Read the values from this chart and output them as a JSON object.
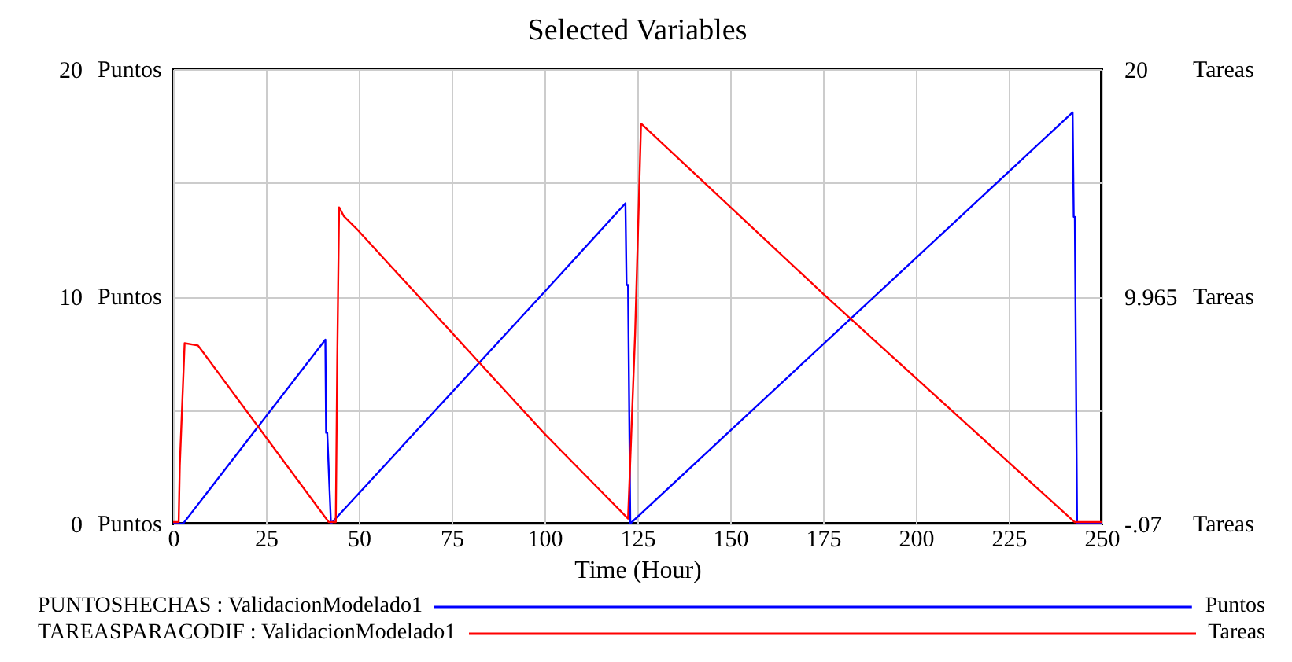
{
  "chart_data": {
    "type": "line",
    "title": "Selected Variables",
    "xlabel": "Time (Hour)",
    "ylabel": "Puntos",
    "y2label": "Tareas",
    "xlim": [
      0,
      250
    ],
    "xticks": [
      0,
      25,
      50,
      75,
      100,
      125,
      150,
      175,
      200,
      225,
      250
    ],
    "ylim": [
      0,
      20
    ],
    "yticks": [
      0,
      {
        "value": 5,
        "label": null
      },
      10,
      {
        "value": 15,
        "label": null
      },
      20
    ],
    "y2lim": [
      -0.07,
      20
    ],
    "y2ticks": [
      {
        "value": -0.07,
        "label": "-.07"
      },
      9.965,
      20
    ],
    "grid": true,
    "legend": "bottom",
    "marker": "none",
    "line_style": "solid",
    "series": [
      {
        "name": "PUNTOSHECHAS : ValidacionModelado1",
        "color": "#0000ff",
        "x": [
          0,
          2.7,
          41,
          41.2,
          41.5,
          42.5,
          100,
          121.8,
          122.1,
          122.5,
          123.1,
          242.2,
          242.5,
          242.8,
          243.4,
          250
        ],
        "values": [
          0,
          0,
          8.1,
          4.0,
          4.0,
          0,
          10.2,
          14.1,
          10.5,
          10.5,
          0,
          18.1,
          13.5,
          13.5,
          0,
          0
        ]
      },
      {
        "name": "TAREASPARACODIF : ValidacionModelado1",
        "color": "#ff0000",
        "axis": "y2",
        "x": [
          0,
          1.5,
          1.8,
          3.1,
          6.7,
          41.9,
          43.8,
          44.2,
          44.7,
          46,
          49.7,
          100,
          122.5,
          124.4,
          126,
          174.9,
          242.7,
          250
        ],
        "values": [
          0,
          0,
          2.5,
          7.9,
          7.8,
          0,
          0,
          7.2,
          13.9,
          13.5,
          12.9,
          3.9,
          0.15,
          8.3,
          17.6,
          10.1,
          0,
          0
        ]
      }
    ]
  }
}
